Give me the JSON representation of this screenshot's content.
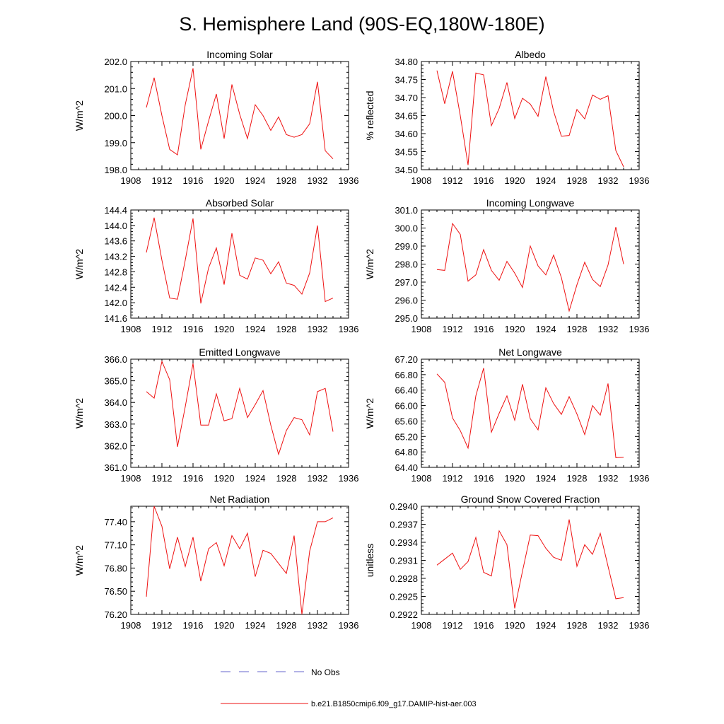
{
  "figure": {
    "title": "S. Hemisphere Land (90S-EQ,180W-180E)",
    "line_color": "#ee1111",
    "obs_color": "#6666cc",
    "legend": {
      "no_obs_label": "No Obs",
      "model_label": "b.e21.B1850cmip6.f09_g17.DAMIP-hist-aer.003"
    }
  },
  "chart_data": [
    {
      "type": "line",
      "title": "Incoming Solar",
      "xlabel": "",
      "ylabel": "W/m^2",
      "xlim": [
        1908,
        1936
      ],
      "xticks": [
        1908,
        1912,
        1916,
        1920,
        1924,
        1928,
        1932,
        1936
      ],
      "ylim": [
        198.0,
        202.0
      ],
      "yticks": [
        "198.0",
        "199.0",
        "200.0",
        "201.0",
        "202.0"
      ],
      "x": [
        1910,
        1911,
        1912,
        1913,
        1914,
        1915,
        1916,
        1917,
        1918,
        1919,
        1920,
        1921,
        1922,
        1923,
        1924,
        1925,
        1926,
        1927,
        1928,
        1929,
        1930,
        1931,
        1932,
        1933,
        1934
      ],
      "values": [
        200.3,
        201.4,
        200.0,
        198.75,
        198.55,
        200.4,
        201.75,
        198.75,
        199.8,
        200.8,
        199.15,
        201.15,
        200.05,
        199.15,
        200.4,
        200.0,
        199.45,
        199.95,
        199.3,
        199.2,
        199.3,
        199.7,
        201.25,
        198.7,
        198.4
      ]
    },
    {
      "type": "line",
      "title": "Albedo",
      "xlabel": "",
      "ylabel": "% reflected",
      "xlim": [
        1908,
        1936
      ],
      "xticks": [
        1908,
        1912,
        1916,
        1920,
        1924,
        1928,
        1932,
        1936
      ],
      "ylim": [
        34.5,
        34.8
      ],
      "yticks": [
        "34.50",
        "34.55",
        "34.60",
        "34.65",
        "34.70",
        "34.75",
        "34.80"
      ],
      "x": [
        1910,
        1911,
        1912,
        1913,
        1914,
        1915,
        1916,
        1917,
        1918,
        1919,
        1920,
        1921,
        1922,
        1923,
        1924,
        1925,
        1926,
        1927,
        1928,
        1929,
        1930,
        1931,
        1932,
        1933,
        1934
      ],
      "values": [
        34.775,
        34.683,
        34.773,
        34.65,
        34.513,
        34.768,
        34.763,
        34.622,
        34.67,
        34.742,
        34.642,
        34.698,
        34.682,
        34.648,
        34.758,
        34.662,
        34.593,
        34.595,
        34.667,
        34.641,
        34.707,
        34.695,
        34.705,
        34.553,
        34.508
      ]
    },
    {
      "type": "line",
      "title": "Absorbed Solar",
      "xlabel": "",
      "ylabel": "W/m^2",
      "xlim": [
        1908,
        1936
      ],
      "xticks": [
        1908,
        1912,
        1916,
        1920,
        1924,
        1928,
        1932,
        1936
      ],
      "ylim": [
        141.6,
        144.4
      ],
      "yticks": [
        "141.6",
        "142.0",
        "142.4",
        "142.8",
        "143.2",
        "143.6",
        "144.0",
        "144.4"
      ],
      "x": [
        1910,
        1911,
        1912,
        1913,
        1914,
        1915,
        1916,
        1917,
        1918,
        1919,
        1920,
        1921,
        1922,
        1923,
        1924,
        1925,
        1926,
        1927,
        1928,
        1929,
        1930,
        1931,
        1932,
        1933,
        1934
      ],
      "values": [
        143.3,
        144.2,
        143.1,
        142.12,
        142.09,
        143.1,
        144.18,
        141.98,
        142.9,
        143.42,
        142.47,
        143.8,
        142.71,
        142.61,
        143.16,
        143.1,
        142.75,
        143.06,
        142.51,
        142.45,
        142.22,
        142.77,
        144.0,
        142.03,
        142.12
      ]
    },
    {
      "type": "line",
      "title": "Incoming Longwave",
      "xlabel": "",
      "ylabel": "W/m^2",
      "xlim": [
        1908,
        1936
      ],
      "xticks": [
        1908,
        1912,
        1916,
        1920,
        1924,
        1928,
        1932,
        1936
      ],
      "ylim": [
        295.0,
        301.0
      ],
      "yticks": [
        "295.0",
        "296.0",
        "297.0",
        "298.0",
        "299.0",
        "300.0",
        "301.0"
      ],
      "x": [
        1910,
        1911,
        1912,
        1913,
        1914,
        1915,
        1916,
        1917,
        1918,
        1919,
        1920,
        1921,
        1922,
        1923,
        1924,
        1925,
        1926,
        1927,
        1928,
        1929,
        1930,
        1931,
        1932,
        1933,
        1934
      ],
      "values": [
        297.7,
        297.65,
        300.25,
        299.65,
        297.05,
        297.4,
        298.8,
        297.65,
        297.1,
        298.15,
        297.5,
        296.7,
        299.0,
        297.9,
        297.4,
        298.5,
        297.25,
        295.4,
        296.85,
        298.1,
        297.15,
        296.75,
        297.95,
        300.05,
        298.0
      ]
    },
    {
      "type": "line",
      "title": "Emitted Longwave",
      "xlabel": "",
      "ylabel": "W/m^2",
      "xlim": [
        1908,
        1936
      ],
      "xticks": [
        1908,
        1912,
        1916,
        1920,
        1924,
        1928,
        1932,
        1936
      ],
      "ylim": [
        361.0,
        366.0
      ],
      "yticks": [
        "361.0",
        "362.0",
        "363.0",
        "364.0",
        "365.0",
        "366.0"
      ],
      "x": [
        1910,
        1911,
        1912,
        1913,
        1914,
        1915,
        1916,
        1917,
        1918,
        1919,
        1920,
        1921,
        1922,
        1923,
        1924,
        1925,
        1926,
        1927,
        1928,
        1929,
        1930,
        1931,
        1932,
        1933,
        1934
      ],
      "values": [
        364.5,
        364.2,
        365.9,
        365.05,
        361.95,
        363.8,
        365.8,
        362.95,
        362.95,
        364.4,
        363.15,
        363.25,
        364.65,
        363.3,
        363.9,
        364.55,
        362.95,
        361.6,
        362.7,
        363.3,
        363.2,
        362.5,
        364.5,
        364.65,
        362.65
      ]
    },
    {
      "type": "line",
      "title": "Net Longwave",
      "xlabel": "",
      "ylabel": "W/m^2",
      "xlim": [
        1908,
        1936
      ],
      "xticks": [
        1908,
        1912,
        1916,
        1920,
        1924,
        1928,
        1932,
        1936
      ],
      "ylim": [
        64.4,
        67.2
      ],
      "yticks": [
        "64.40",
        "64.80",
        "65.20",
        "65.60",
        "66.00",
        "66.40",
        "66.80",
        "67.20"
      ],
      "x": [
        1910,
        1911,
        1912,
        1913,
        1914,
        1915,
        1916,
        1917,
        1918,
        1919,
        1920,
        1921,
        1922,
        1923,
        1924,
        1925,
        1926,
        1927,
        1928,
        1929,
        1930,
        1931,
        1932,
        1933,
        1934
      ],
      "values": [
        66.82,
        66.6,
        65.68,
        65.35,
        64.9,
        66.25,
        66.97,
        65.31,
        65.8,
        66.25,
        65.62,
        66.55,
        65.66,
        65.37,
        66.46,
        66.05,
        65.77,
        66.23,
        65.78,
        65.25,
        66.0,
        65.75,
        66.57,
        64.65,
        64.66
      ]
    },
    {
      "type": "line",
      "title": "Net Radiation",
      "xlabel": "",
      "ylabel": "W/m^2",
      "xlim": [
        1908,
        1936
      ],
      "xticks": [
        1908,
        1912,
        1916,
        1920,
        1924,
        1928,
        1932,
        1936
      ],
      "ylim": [
        76.2,
        77.6
      ],
      "yticks": [
        "76.20",
        "76.50",
        "76.80",
        "77.10",
        "77.40"
      ],
      "x": [
        1910,
        1911,
        1912,
        1913,
        1914,
        1915,
        1916,
        1917,
        1918,
        1919,
        1920,
        1921,
        1922,
        1923,
        1924,
        1925,
        1926,
        1927,
        1928,
        1929,
        1930,
        1931,
        1932,
        1933,
        1934
      ],
      "values": [
        76.43,
        77.6,
        77.34,
        76.79,
        77.2,
        76.82,
        77.2,
        76.63,
        77.05,
        77.13,
        76.83,
        77.22,
        77.05,
        77.25,
        76.69,
        77.03,
        76.99,
        76.86,
        76.73,
        77.22,
        76.2,
        77.02,
        77.4,
        77.4,
        77.45
      ]
    },
    {
      "type": "line",
      "title": "Ground Snow Covered Fraction",
      "xlabel": "",
      "ylabel": "unitless",
      "xlim": [
        1908,
        1936
      ],
      "xticks": [
        1908,
        1912,
        1916,
        1920,
        1924,
        1928,
        1932,
        1936
      ],
      "ylim": [
        0.2922,
        0.294
      ],
      "yticks": [
        "0.2922",
        "0.2925",
        "0.2928",
        "0.2931",
        "0.2934",
        "0.2937",
        "0.2940"
      ],
      "x": [
        1910,
        1911,
        1912,
        1913,
        1914,
        1915,
        1916,
        1917,
        1918,
        1919,
        1920,
        1921,
        1922,
        1923,
        1924,
        1925,
        1926,
        1927,
        1928,
        1929,
        1930,
        1931,
        1932,
        1933,
        1934
      ],
      "values": [
        0.29302,
        0.29312,
        0.29322,
        0.29295,
        0.29308,
        0.29348,
        0.2929,
        0.29284,
        0.29359,
        0.29336,
        0.2923,
        0.29292,
        0.29352,
        0.29351,
        0.2933,
        0.29315,
        0.2931,
        0.29378,
        0.293,
        0.29336,
        0.2932,
        0.29355,
        0.293,
        0.29246,
        0.29248
      ]
    }
  ]
}
